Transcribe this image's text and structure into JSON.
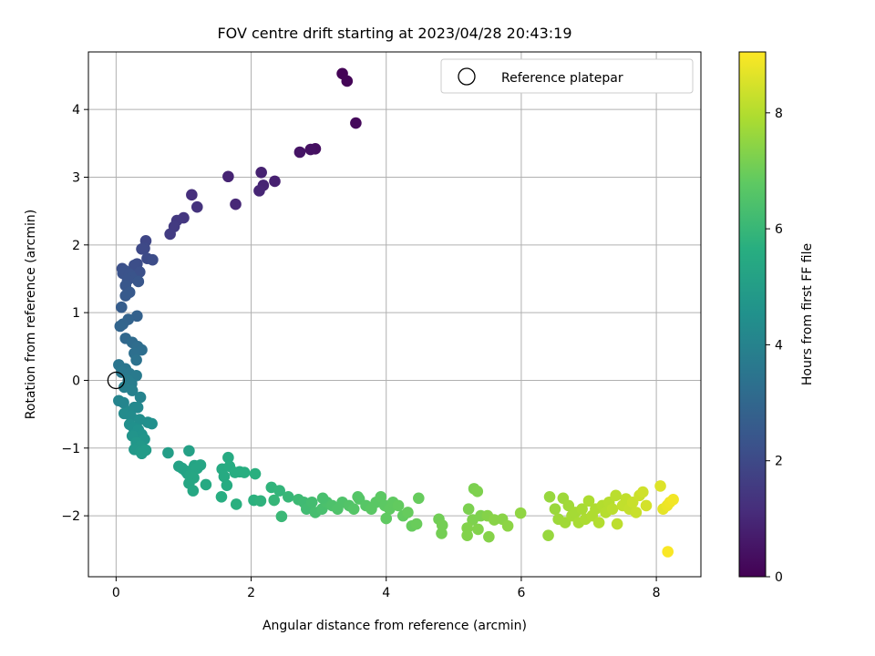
{
  "chart_data": {
    "type": "scatter",
    "title": "FOV centre drift starting at 2023/04/28 20:43:19",
    "xlabel": "Angular distance from reference (arcmin)",
    "ylabel": "Rotation from reference (arcmin)",
    "xlim": [
      -0.41,
      8.66
    ],
    "ylim": [
      -2.9,
      4.85
    ],
    "xticks": [
      0,
      2,
      4,
      6,
      8
    ],
    "xtick_labels": [
      "0",
      "2",
      "4",
      "6",
      "8"
    ],
    "yticks": [
      -2,
      -1,
      0,
      1,
      2,
      3,
      4
    ],
    "ytick_labels": [
      "−2",
      "−1",
      "0",
      "1",
      "2",
      "3",
      "4"
    ],
    "grid": true,
    "legend": {
      "placement": "upper-right",
      "entries": [
        "Reference platepar"
      ]
    },
    "colorbar": {
      "label": "Hours from first FF file",
      "range": [
        0,
        9.05
      ],
      "ticks": [
        0,
        2,
        4,
        6,
        8
      ],
      "tick_labels": [
        "0",
        "2",
        "4",
        "6",
        "8"
      ],
      "colormap": "viridis"
    },
    "reference_point": {
      "x": 0,
      "y": 0
    },
    "series": [
      {
        "points": [
          [
            3.35,
            4.53,
            0.05
          ],
          [
            3.42,
            4.42,
            0.1
          ],
          [
            3.55,
            3.8,
            0.2
          ],
          [
            2.95,
            3.42,
            0.35
          ],
          [
            2.88,
            3.41,
            0.4
          ],
          [
            2.72,
            3.37,
            0.5
          ],
          [
            2.35,
            2.94,
            0.8
          ],
          [
            2.18,
            2.88,
            0.9
          ],
          [
            2.12,
            2.8,
            0.95
          ],
          [
            2.15,
            3.07,
            0.85
          ],
          [
            1.66,
            3.01,
            0.9
          ],
          [
            1.77,
            2.6,
            1.0
          ],
          [
            1.12,
            2.74,
            1.2
          ],
          [
            1.2,
            2.56,
            1.3
          ],
          [
            1.0,
            2.4,
            1.45
          ],
          [
            0.9,
            2.36,
            1.5
          ],
          [
            0.86,
            2.27,
            1.55
          ],
          [
            0.8,
            2.16,
            1.6
          ],
          [
            0.44,
            2.06,
            1.9
          ],
          [
            0.42,
            1.95,
            2.0
          ],
          [
            0.38,
            1.94,
            2.0
          ],
          [
            0.46,
            1.8,
            2.05
          ],
          [
            0.54,
            1.78,
            2.1
          ],
          [
            0.31,
            1.72,
            2.1
          ],
          [
            0.27,
            1.7,
            2.15
          ],
          [
            0.35,
            1.6,
            2.2
          ],
          [
            0.09,
            1.65,
            2.2
          ],
          [
            0.13,
            1.62,
            2.25
          ],
          [
            0.1,
            1.58,
            2.3
          ],
          [
            0.2,
            1.57,
            2.3
          ],
          [
            0.23,
            1.52,
            2.35
          ],
          [
            0.17,
            1.48,
            2.35
          ],
          [
            0.33,
            1.46,
            2.4
          ],
          [
            0.14,
            1.4,
            2.45
          ],
          [
            0.2,
            1.3,
            2.5
          ],
          [
            0.14,
            1.25,
            2.55
          ],
          [
            0.08,
            1.08,
            2.65
          ],
          [
            0.31,
            0.95,
            2.8
          ],
          [
            0.18,
            0.9,
            2.85
          ],
          [
            0.1,
            0.83,
            2.9
          ],
          [
            0.06,
            0.8,
            2.95
          ],
          [
            0.14,
            0.62,
            3.05
          ],
          [
            0.24,
            0.56,
            3.15
          ],
          [
            0.32,
            0.5,
            3.2
          ],
          [
            0.38,
            0.45,
            3.25
          ],
          [
            0.27,
            0.4,
            3.3
          ],
          [
            0.3,
            0.3,
            3.4
          ],
          [
            0.04,
            0.23,
            3.5
          ],
          [
            0.14,
            0.17,
            3.55
          ],
          [
            0.08,
            0.12,
            3.6
          ],
          [
            0.2,
            0.1,
            3.65
          ],
          [
            0.3,
            0.07,
            3.7
          ],
          [
            0.18,
            0.0,
            3.75
          ],
          [
            0.23,
            -0.05,
            3.8
          ],
          [
            0.12,
            -0.1,
            3.85
          ],
          [
            0.24,
            -0.15,
            3.9
          ],
          [
            0.36,
            -0.25,
            4.0
          ],
          [
            0.04,
            -0.3,
            4.05
          ],
          [
            0.11,
            -0.33,
            4.1
          ],
          [
            0.27,
            -0.4,
            4.15
          ],
          [
            0.32,
            -0.4,
            4.2
          ],
          [
            0.19,
            -0.46,
            4.25
          ],
          [
            0.12,
            -0.49,
            4.3
          ],
          [
            0.22,
            -0.53,
            4.3
          ],
          [
            0.35,
            -0.58,
            4.4
          ],
          [
            0.47,
            -0.62,
            4.45
          ],
          [
            0.53,
            -0.64,
            4.5
          ],
          [
            0.2,
            -0.65,
            4.45
          ],
          [
            0.26,
            -0.7,
            4.5
          ],
          [
            0.33,
            -0.73,
            4.55
          ],
          [
            0.38,
            -0.8,
            4.6
          ],
          [
            0.24,
            -0.82,
            4.65
          ],
          [
            0.42,
            -0.87,
            4.7
          ],
          [
            0.3,
            -0.92,
            4.75
          ],
          [
            0.36,
            -0.97,
            4.8
          ],
          [
            0.27,
            -1.02,
            4.8
          ],
          [
            0.36,
            -1.05,
            4.85
          ],
          [
            0.44,
            -1.03,
            4.9
          ],
          [
            0.38,
            -1.08,
            4.9
          ],
          [
            0.77,
            -1.07,
            5.0
          ],
          [
            1.08,
            -1.04,
            5.1
          ],
          [
            0.93,
            -1.27,
            5.15
          ],
          [
            0.98,
            -1.3,
            5.2
          ],
          [
            1.03,
            -1.34,
            5.2
          ],
          [
            1.06,
            -1.38,
            5.2
          ],
          [
            1.12,
            -1.33,
            5.25
          ],
          [
            1.16,
            -1.26,
            5.25
          ],
          [
            1.2,
            -1.3,
            5.3
          ],
          [
            1.25,
            -1.25,
            5.3
          ],
          [
            1.1,
            -1.4,
            5.3
          ],
          [
            1.15,
            -1.44,
            5.35
          ],
          [
            1.08,
            -1.52,
            5.35
          ],
          [
            1.14,
            -1.63,
            5.4
          ],
          [
            1.33,
            -1.54,
            5.45
          ],
          [
            1.57,
            -1.31,
            5.5
          ],
          [
            1.6,
            -1.42,
            5.5
          ],
          [
            1.64,
            -1.55,
            5.55
          ],
          [
            1.56,
            -1.72,
            5.6
          ],
          [
            1.66,
            -1.14,
            5.5
          ],
          [
            1.68,
            -1.27,
            5.55
          ],
          [
            1.76,
            -1.36,
            5.6
          ],
          [
            1.83,
            -1.35,
            5.6
          ],
          [
            1.9,
            -1.36,
            5.65
          ],
          [
            2.06,
            -1.38,
            5.7
          ],
          [
            1.78,
            -1.83,
            5.7
          ],
          [
            2.04,
            -1.77,
            5.75
          ],
          [
            2.14,
            -1.78,
            5.8
          ],
          [
            2.3,
            -1.58,
            5.85
          ],
          [
            2.42,
            -1.63,
            5.9
          ],
          [
            2.34,
            -1.77,
            5.95
          ],
          [
            2.55,
            -1.72,
            6.0
          ],
          [
            2.45,
            -2.01,
            6.05
          ],
          [
            2.7,
            -1.76,
            6.1
          ],
          [
            2.78,
            -1.8,
            6.15
          ],
          [
            2.82,
            -1.9,
            6.2
          ],
          [
            2.9,
            -1.8,
            6.25
          ],
          [
            2.95,
            -1.95,
            6.3
          ],
          [
            3.05,
            -1.9,
            6.35
          ],
          [
            3.12,
            -1.8,
            6.4
          ],
          [
            3.2,
            -1.85,
            6.45
          ],
          [
            3.28,
            -1.9,
            6.5
          ],
          [
            3.35,
            -1.8,
            6.5
          ],
          [
            3.45,
            -1.85,
            6.55
          ],
          [
            3.52,
            -1.9,
            6.6
          ],
          [
            3.6,
            -1.75,
            6.6
          ],
          [
            3.7,
            -1.85,
            6.65
          ],
          [
            3.78,
            -1.9,
            6.7
          ],
          [
            3.85,
            -1.8,
            6.7
          ],
          [
            3.92,
            -1.72,
            6.75
          ],
          [
            3.98,
            -1.85,
            6.75
          ],
          [
            4.05,
            -1.9,
            6.8
          ],
          [
            4.1,
            -1.8,
            6.8
          ],
          [
            4.18,
            -1.85,
            6.85
          ],
          [
            4.25,
            -2.0,
            6.85
          ],
          [
            4.32,
            -1.95,
            6.9
          ],
          [
            4.38,
            -2.15,
            6.9
          ],
          [
            4.45,
            -2.12,
            6.95
          ],
          [
            4.48,
            -1.74,
            6.9
          ],
          [
            3.06,
            -1.74,
            6.35
          ],
          [
            3.58,
            -1.72,
            6.6
          ],
          [
            4.0,
            -2.04,
            6.8
          ],
          [
            4.78,
            -2.05,
            7.05
          ],
          [
            4.83,
            -2.14,
            7.1
          ],
          [
            4.82,
            -2.26,
            7.1
          ],
          [
            5.22,
            -1.9,
            7.2
          ],
          [
            5.3,
            -1.6,
            7.2
          ],
          [
            5.35,
            -1.64,
            7.25
          ],
          [
            5.4,
            -2.0,
            7.25
          ],
          [
            5.28,
            -2.06,
            7.25
          ],
          [
            5.2,
            -2.18,
            7.3
          ],
          [
            5.36,
            -2.2,
            7.3
          ],
          [
            5.2,
            -2.29,
            7.3
          ],
          [
            5.5,
            -2.0,
            7.35
          ],
          [
            5.52,
            -2.31,
            7.35
          ],
          [
            5.6,
            -2.06,
            7.4
          ],
          [
            5.72,
            -2.05,
            7.4
          ],
          [
            5.8,
            -2.15,
            7.45
          ],
          [
            5.99,
            -1.96,
            7.5
          ],
          [
            6.4,
            -2.29,
            7.6
          ],
          [
            6.42,
            -1.72,
            7.6
          ],
          [
            6.5,
            -1.9,
            7.65
          ],
          [
            6.55,
            -2.05,
            7.7
          ],
          [
            6.62,
            -1.74,
            7.7
          ],
          [
            6.65,
            -2.1,
            7.75
          ],
          [
            6.7,
            -1.85,
            7.75
          ],
          [
            6.75,
            -2.0,
            7.8
          ],
          [
            6.8,
            -1.95,
            7.8
          ],
          [
            6.85,
            -2.1,
            7.85
          ],
          [
            6.9,
            -1.9,
            7.85
          ],
          [
            6.95,
            -2.05,
            7.9
          ],
          [
            7.0,
            -1.78,
            7.9
          ],
          [
            7.05,
            -2.0,
            7.95
          ],
          [
            7.1,
            -1.9,
            7.95
          ],
          [
            7.15,
            -2.1,
            8.0
          ],
          [
            7.2,
            -1.85,
            8.0
          ],
          [
            7.25,
            -1.95,
            8.05
          ],
          [
            7.3,
            -1.8,
            8.05
          ],
          [
            7.35,
            -1.9,
            8.1
          ],
          [
            7.4,
            -1.7,
            8.1
          ],
          [
            7.42,
            -2.12,
            8.15
          ],
          [
            7.5,
            -1.85,
            8.2
          ],
          [
            7.55,
            -1.75,
            8.2
          ],
          [
            7.6,
            -1.9,
            8.25
          ],
          [
            7.65,
            -1.8,
            8.3
          ],
          [
            7.7,
            -1.95,
            8.3
          ],
          [
            7.75,
            -1.7,
            8.35
          ],
          [
            7.8,
            -1.65,
            8.4
          ],
          [
            7.85,
            -1.85,
            8.45
          ],
          [
            8.06,
            -1.56,
            8.6
          ],
          [
            8.1,
            -1.9,
            8.7
          ],
          [
            8.16,
            -1.85,
            8.8
          ],
          [
            8.2,
            -1.8,
            8.85
          ],
          [
            8.25,
            -1.76,
            8.9
          ],
          [
            8.17,
            -2.53,
            9.0
          ]
        ]
      }
    ]
  }
}
